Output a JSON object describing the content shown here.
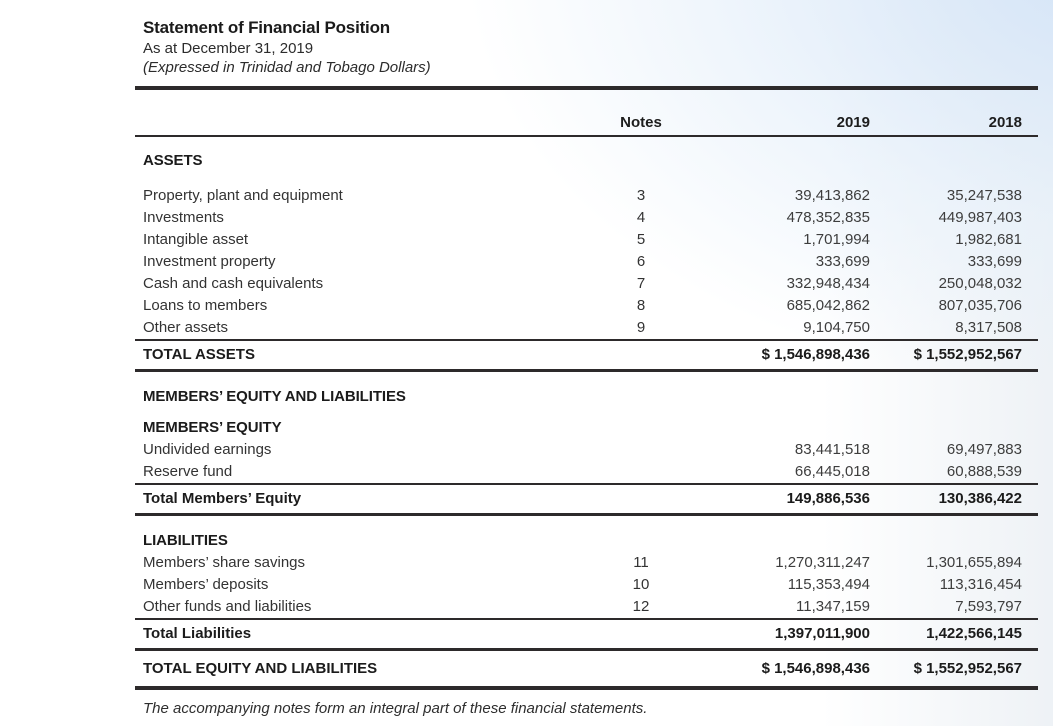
{
  "header": {
    "title": "Statement of Financial Position",
    "as_at": "As at December 31, 2019",
    "currency_note": "(Expressed in Trinidad and Tobago Dollars)"
  },
  "table": {
    "columns": {
      "notes": "Notes",
      "y2019": "2019",
      "y2018": "2018"
    },
    "assets": {
      "heading": "ASSETS",
      "rows": [
        {
          "label": "Property, plant and equipment",
          "note": "3",
          "y2019": "39,413,862",
          "y2018": "35,247,538"
        },
        {
          "label": "Investments",
          "note": "4",
          "y2019": "478,352,835",
          "y2018": "449,987,403"
        },
        {
          "label": "Intangible asset",
          "note": "5",
          "y2019": "1,701,994",
          "y2018": "1,982,681"
        },
        {
          "label": "Investment property",
          "note": "6",
          "y2019": "333,699",
          "y2018": "333,699"
        },
        {
          "label": "Cash and cash equivalents",
          "note": "7",
          "y2019": "332,948,434",
          "y2018": "250,048,032"
        },
        {
          "label": "Loans to members",
          "note": "8",
          "y2019": "685,042,862",
          "y2018": "807,035,706"
        },
        {
          "label": "Other assets",
          "note": "9",
          "y2019": "9,104,750",
          "y2018": "8,317,508"
        }
      ],
      "total": {
        "label": "TOTAL ASSETS",
        "y2019": "$ 1,546,898,436",
        "y2018": "$ 1,552,952,567"
      }
    },
    "equity_liabilities_heading": "MEMBERS’ EQUITY AND LIABILITIES",
    "members_equity": {
      "heading": "MEMBERS’ EQUITY",
      "rows": [
        {
          "label": "Undivided earnings",
          "note": "",
          "y2019": "83,441,518",
          "y2018": "69,497,883"
        },
        {
          "label": "Reserve fund",
          "note": "",
          "y2019": "66,445,018",
          "y2018": "60,888,539"
        }
      ],
      "total": {
        "label": "Total Members’ Equity",
        "y2019": "149,886,536",
        "y2018": "130,386,422"
      }
    },
    "liabilities": {
      "heading": "LIABILITIES",
      "rows": [
        {
          "label": "Members’ share savings",
          "note": "11",
          "y2019": "1,270,311,247",
          "y2018": "1,301,655,894"
        },
        {
          "label": "Members’ deposits",
          "note": "10",
          "y2019": "115,353,494",
          "y2018": "113,316,454"
        },
        {
          "label": "Other funds and liabilities",
          "note": "12",
          "y2019": "11,347,159",
          "y2018": "7,593,797"
        }
      ],
      "total": {
        "label": "Total Liabilities",
        "y2019": "1,397,011,900",
        "y2018": "1,422,566,145"
      }
    },
    "grand_total": {
      "label": "TOTAL EQUITY AND LIABILITIES",
      "y2019": "$ 1,546,898,436",
      "y2018": "$ 1,552,952,567"
    }
  },
  "footer": {
    "note": "The accompanying notes form an integral part of these financial statements."
  }
}
